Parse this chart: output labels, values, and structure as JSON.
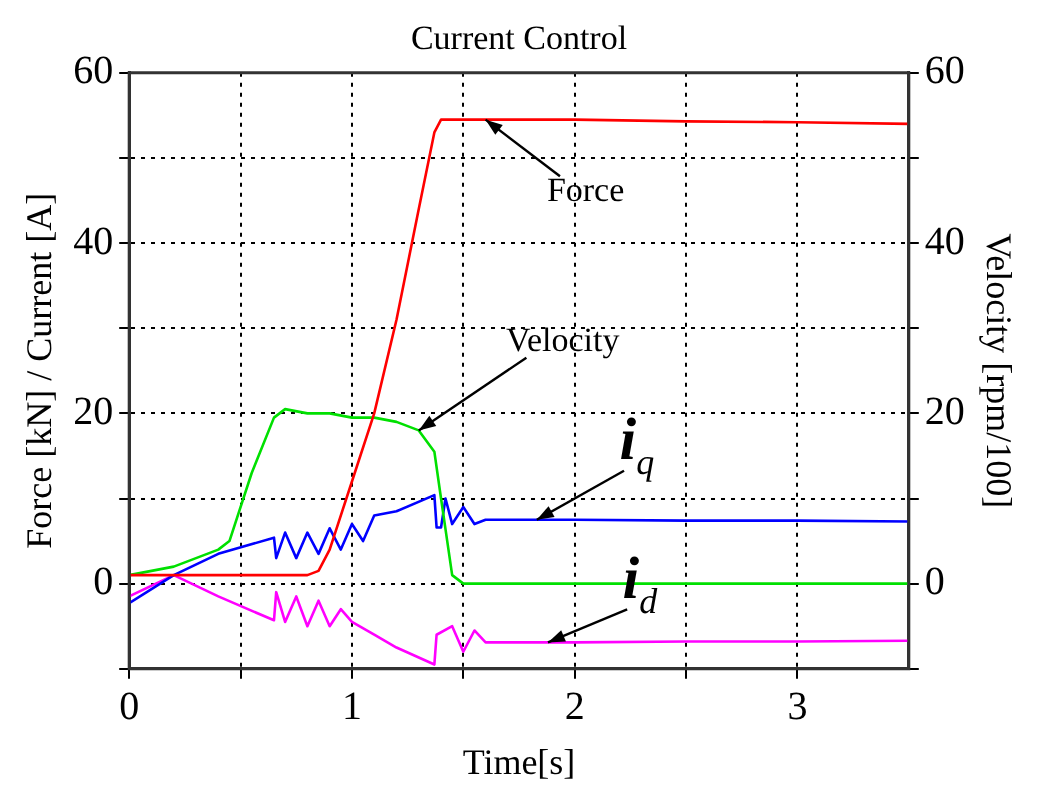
{
  "chart_data": {
    "type": "line",
    "title": "Current Control",
    "xlabel": "Time[s]",
    "ylabel": "Force [kN] / Current [A]",
    "y2label": "Velocity [rpm/100]",
    "xlim": [
      0,
      3.5
    ],
    "xticks": [
      0,
      {
        "value": 0.5,
        "label": null
      },
      1,
      {
        "value": 1.5,
        "label": null
      },
      2,
      {
        "value": 2.5,
        "label": null
      },
      3
    ],
    "ylim": [
      -10,
      60
    ],
    "yticks": [
      {
        "value": -10,
        "label": null
      },
      0,
      {
        "value": 10,
        "label": null
      },
      20,
      {
        "value": 30,
        "label": null
      },
      40,
      {
        "value": 50,
        "label": null
      },
      60
    ],
    "y2lim": [
      -10,
      60
    ],
    "y2ticks": [
      {
        "value": -10,
        "label": null
      },
      0,
      {
        "value": 10,
        "label": null
      },
      20,
      {
        "value": 30,
        "label": null
      },
      40,
      {
        "value": 50,
        "label": null
      },
      60
    ],
    "grid": true,
    "legend": false,
    "marker": "none",
    "line_style": "solid",
    "series": [
      {
        "color": "#ff0000",
        "x": [
          0,
          0.4,
          0.8,
          0.85,
          0.9,
          1.0,
          1.1,
          1.2,
          1.3,
          1.37,
          1.4,
          2.0,
          2.5,
          3.0,
          3.5
        ],
        "values": [
          1,
          1,
          1,
          1.5,
          4,
          12,
          20,
          31,
          44,
          53,
          54.5,
          54.5,
          54.3,
          54.2,
          54
        ]
      },
      {
        "color": "#00e000",
        "axis": "y2",
        "x": [
          0,
          0.2,
          0.3,
          0.4,
          0.45,
          0.55,
          0.65,
          0.7,
          0.8,
          0.9,
          1.0,
          1.1,
          1.2,
          1.3,
          1.37,
          1.4,
          1.45,
          1.5,
          2.0,
          2.5,
          3.0,
          3.5
        ],
        "values": [
          1,
          2,
          3,
          4,
          5,
          13,
          19.5,
          20.5,
          20,
          20,
          19.5,
          19.5,
          19,
          18,
          15.5,
          10,
          1,
          0,
          0,
          0,
          0,
          0
        ]
      },
      {
        "color": "#0000ff",
        "x": [
          0,
          0.2,
          0.4,
          0.65,
          0.66,
          0.7,
          0.75,
          0.8,
          0.85,
          0.9,
          0.95,
          1.0,
          1.05,
          1.1,
          1.2,
          1.37,
          1.38,
          1.4,
          1.42,
          1.45,
          1.5,
          1.55,
          1.6,
          2.0,
          2.5,
          3.0,
          3.5
        ],
        "values": [
          -2.3,
          1,
          3.5,
          5.4,
          3,
          6,
          3,
          6,
          3.5,
          6.5,
          4,
          7,
          5,
          8,
          8.5,
          10.4,
          6.6,
          6.6,
          10,
          7,
          9,
          7,
          7.5,
          7.5,
          7.4,
          7.4,
          7.3
        ]
      },
      {
        "color": "#ff00ff",
        "x": [
          0,
          0.2,
          0.4,
          0.65,
          0.66,
          0.7,
          0.75,
          0.8,
          0.85,
          0.9,
          0.95,
          1.0,
          1.1,
          1.2,
          1.37,
          1.38,
          1.45,
          1.5,
          1.55,
          1.6,
          2.0,
          2.5,
          3.0,
          3.5
        ],
        "values": [
          -1.5,
          1,
          -1.5,
          -4.3,
          -1,
          -4.5,
          -1.5,
          -5,
          -2,
          -5,
          -3,
          -4.5,
          -6,
          -7.5,
          -9.5,
          -6,
          -5,
          -8,
          -5.5,
          -6.9,
          -6.9,
          -6.8,
          -6.8,
          -6.7
        ]
      }
    ],
    "annotations": [
      {
        "text": "Force",
        "x": 1.6,
        "y": 54.5
      },
      {
        "text": "Velocity",
        "x": 1.3,
        "y": 18
      },
      {
        "text": "i$_{q}$",
        "x": 1.83,
        "y": 7.5
      },
      {
        "text": "i$_{d}$",
        "x": 1.88,
        "y": -6.9
      }
    ]
  }
}
